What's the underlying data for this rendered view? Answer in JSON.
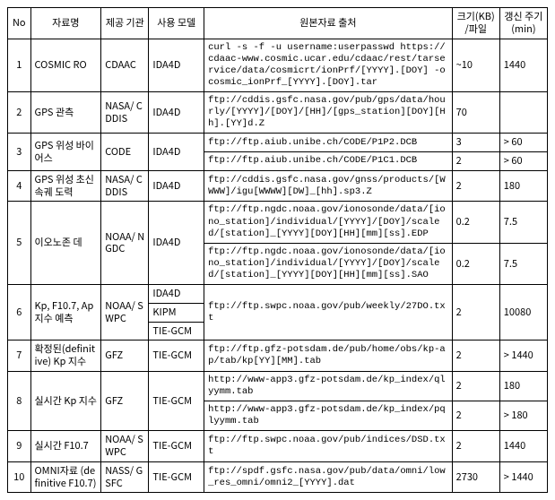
{
  "columns": [
    "No",
    "자료명",
    "제공\n기관",
    "사용\n모델",
    "원본자료 출처",
    "크기(KB)\n/파일",
    "갱신\n주기(min)"
  ],
  "rows": [
    {
      "no": "1",
      "name": "COSMIC\nRO",
      "org": "CDAAC",
      "model": "IDA4D",
      "src": "curl -s -f -u username:userpasswd https://cdaac-www.cosmic.ucar.edu/cdaac/rest/tarservice/data/cosmicrt/ionPrf/[YYYY].[DOY] -o cosmic_ionPrf_[YYYY].[DOY].tar",
      "size": "~10",
      "upd": "1440",
      "rowspan": 1
    },
    {
      "no": "2",
      "name": "GPS 관측",
      "org": "NASA/\nCDDIS",
      "model": "IDA4D",
      "src": "ftp://cddis.gsfc.nasa.gov/pub/gps/data/hourly/[YYYY]/[DOY]/[HH]/[gps_station][DOY][Hh].[YY]d.Z",
      "size": "70",
      "upd": "",
      "rowspan": 1
    },
    {
      "no": "3",
      "name": "GPS 위성\n바이어스",
      "org": "CODE",
      "model": "IDA4D",
      "sub": [
        {
          "src": "ftp://ftp.aiub.unibe.ch/CODE/P1P2.DCB",
          "size": "3",
          "upd": "> 60"
        },
        {
          "src": "ftp://ftp.aiub.unibe.ch/CODE/P1C1.DCB",
          "size": "2",
          "upd": "> 60"
        }
      ],
      "rowspan": 2
    },
    {
      "no": "4",
      "name": "GPS 위성\n초신속궤\n도력",
      "org": "NASA/\nCDDIS",
      "model": "IDA4D",
      "src": "ftp://cddis.gsfc.nasa.gov/gnss/products/[WWWW]/igu[WWWW][DW]_[hh].sp3.Z",
      "size": "2",
      "upd": "180",
      "rowspan": 1
    },
    {
      "no": "5",
      "name": "이오노존\n데",
      "org": "NOAA/\nNGDC",
      "model": "IDA4D",
      "sub": [
        {
          "src": "ftp://ftp.ngdc.noaa.gov/ionosonde/data/[iono_station]/individual/[YYYY]/[DOY]/scaled/[station]_[YYYY][DOY][HH][mm][ss].EDP",
          "size": "0.2",
          "upd": "7.5"
        },
        {
          "src": "ftp://ftp.ngdc.noaa.gov/ionosonde/data/[iono_station]/individual/[YYYY]/[DOY]/scaled/[station]_[YYYY][DOY][HH][mm][ss].SAO",
          "size": "0.2",
          "upd": "7.5"
        }
      ],
      "rowspan": 2
    },
    {
      "no": "6",
      "name": "Kp, F10.7,\nAp\n지수 예측",
      "org": "NOAA/\nSWPC",
      "models": [
        "IDA4D",
        "KIPM",
        "TIE-GCM"
      ],
      "src": "ftp://ftp.swpc.noaa.gov/pub/weekly/27DO.txt",
      "size": "2",
      "upd": "10080",
      "rowspan": 3
    },
    {
      "no": "7",
      "name": "확정된(definitive) Kp\n지수",
      "org": "GFZ",
      "model": "TIE-GCM",
      "src": "ftp://ftp.gfz-potsdam.de/pub/home/obs/kp-ap/tab/kp[YY][MM].tab",
      "size": "2",
      "upd": "> 1440",
      "rowspan": 1
    },
    {
      "no": "8",
      "name": "실시간 Kp\n지수",
      "org": "GFZ",
      "model": "TIE-GCM",
      "sub": [
        {
          "src": "http://www-app3.gfz-potsdam.de/kp_index/qlyymm.tab",
          "size": "2",
          "upd": "180"
        },
        {
          "src": "http://www-app3.gfz-potsdam.de/kp_index/pqlyymm.tab",
          "size": "2",
          "upd": "> 180"
        }
      ],
      "rowspan": 2
    },
    {
      "no": "9",
      "name": "실시간\nF10.7",
      "org": "NOAA/\nSWPC",
      "model": "TIE-GCM",
      "src": "ftp://ftp.swpc.noaa.gov/pub/indices/DSD.txt",
      "size": "2",
      "upd": "1440",
      "rowspan": 1
    },
    {
      "no": "10",
      "name": "OMNI자료\n(definitive F10.7)",
      "org": "NASS/\nGSFC",
      "model": "TIE-GCM",
      "src": "ftp://spdf.gsfc.nasa.gov/pub/data/omni/low_res_omni/omni2_[YYYY].dat",
      "size": "2730",
      "upd": "> 1440",
      "rowspan": 1
    }
  ]
}
